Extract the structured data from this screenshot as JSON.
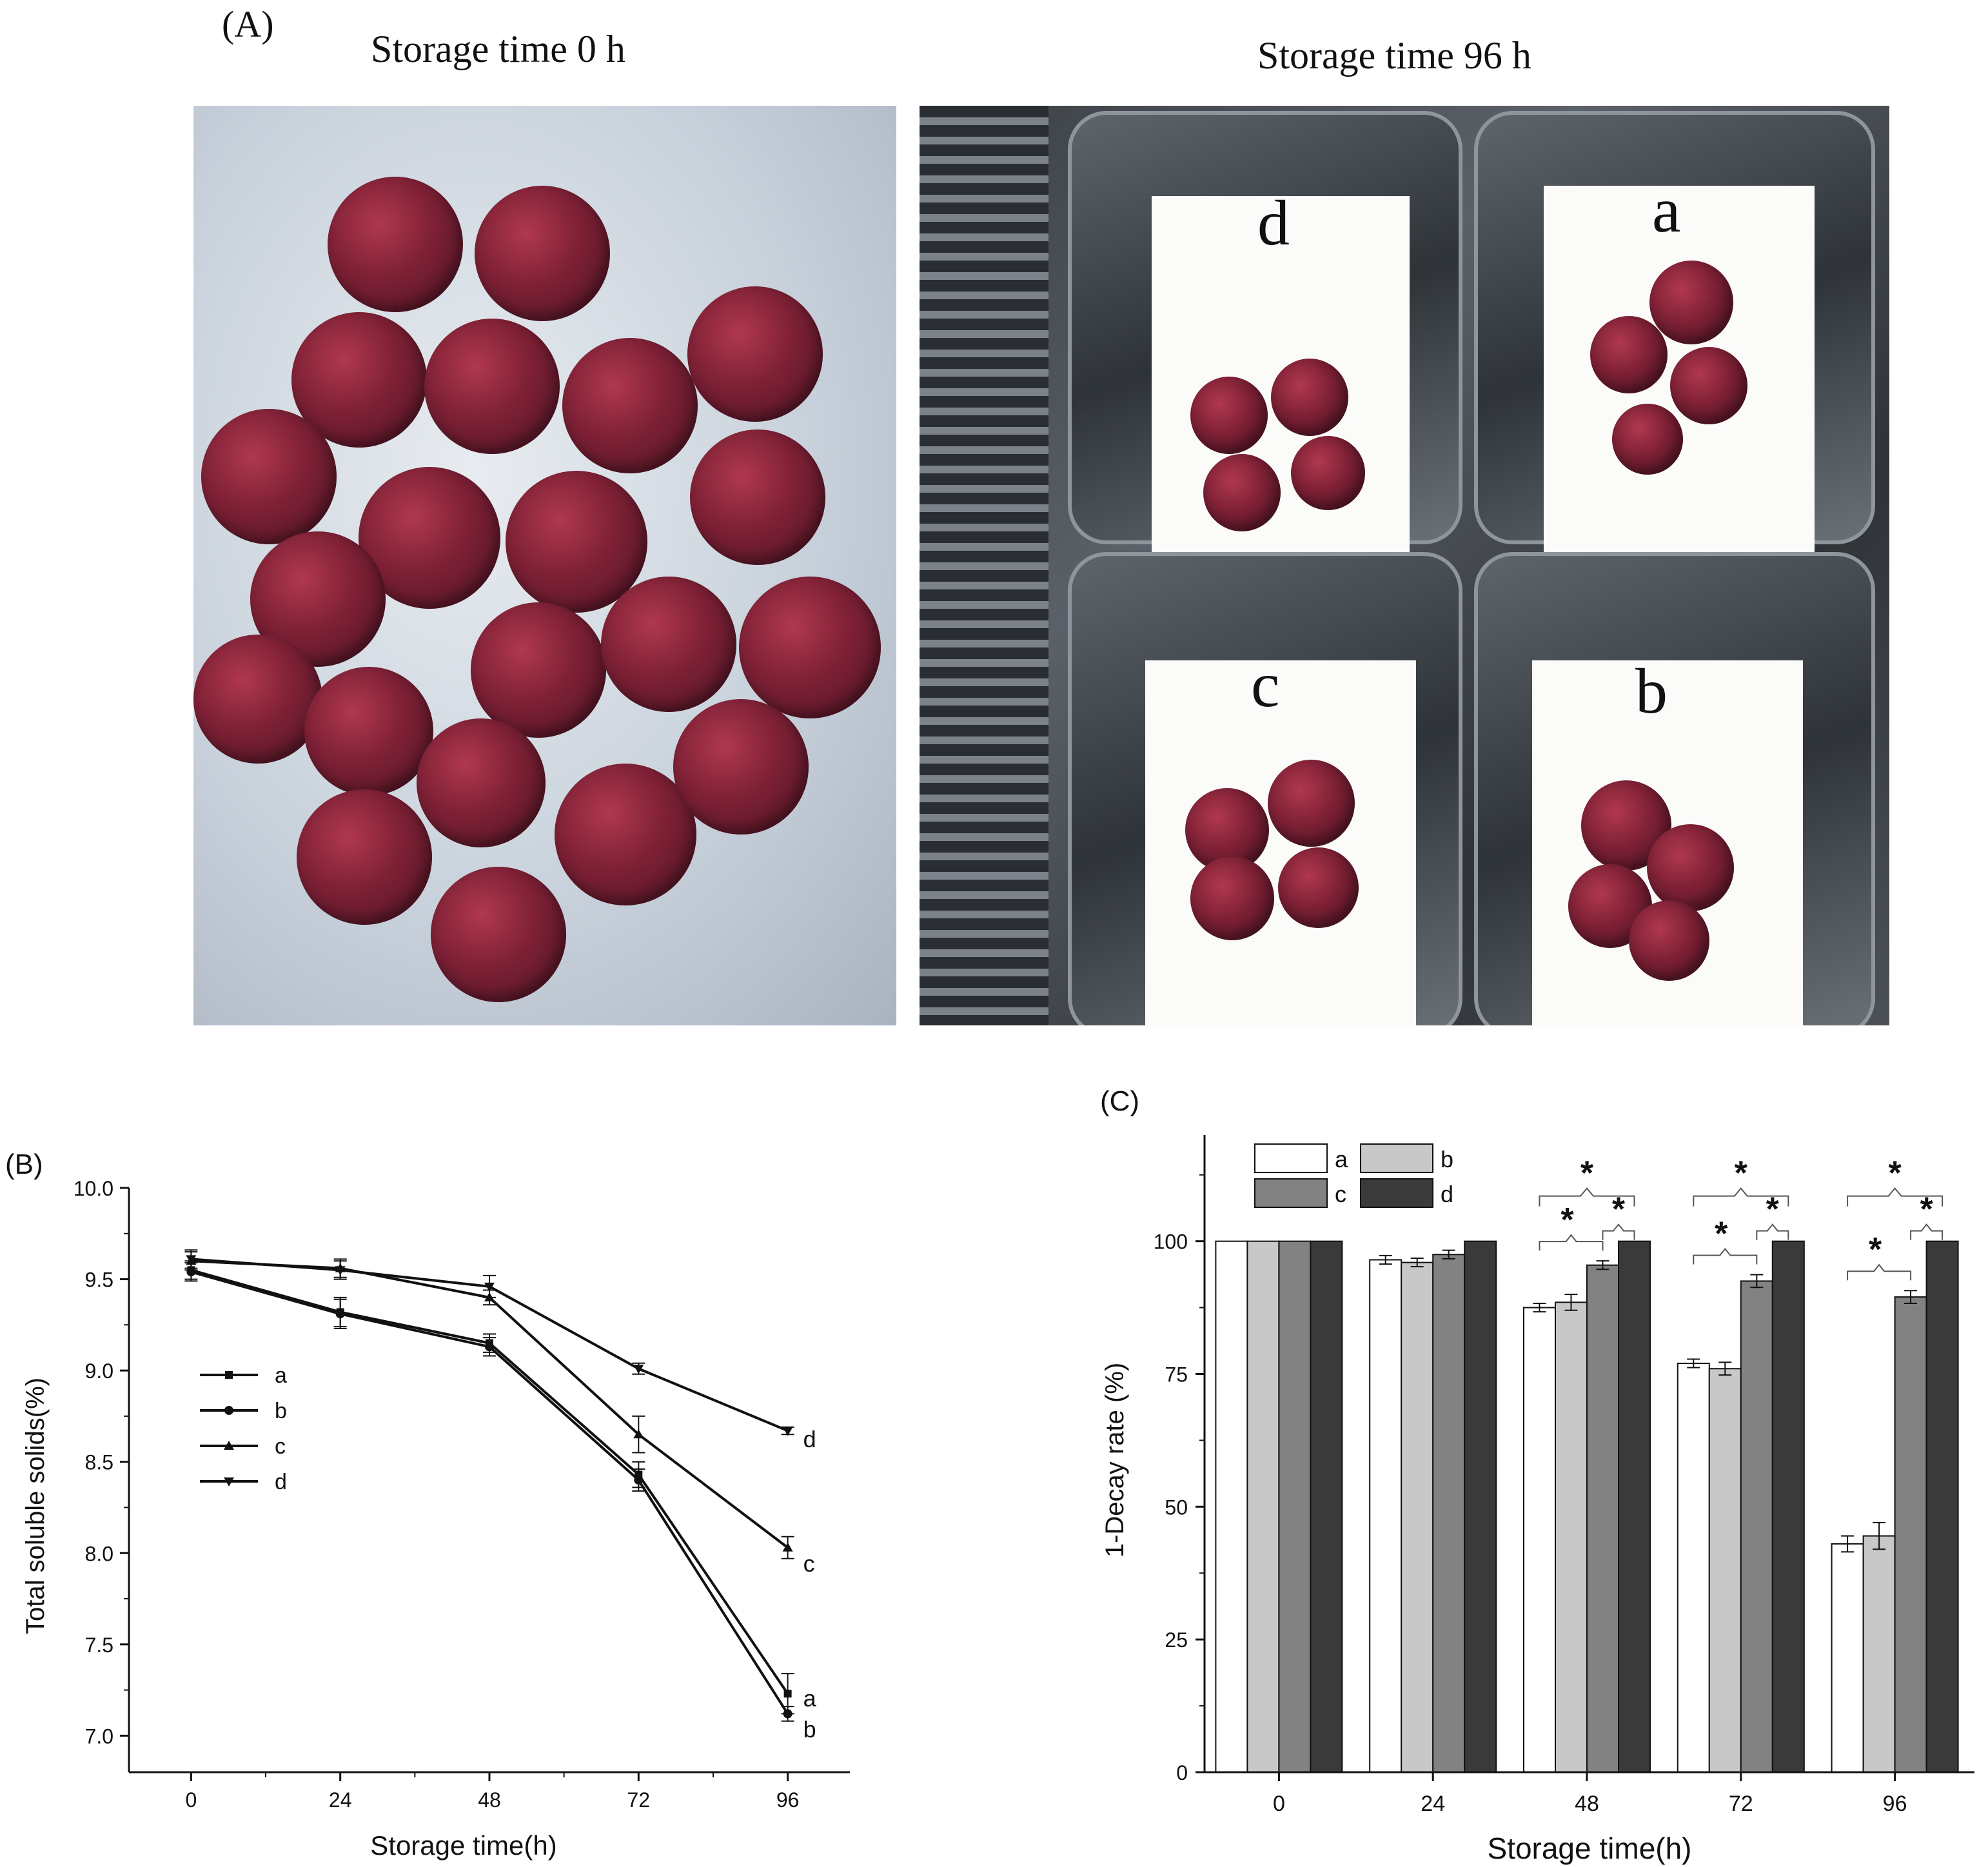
{
  "figure": {
    "panelA": {
      "letter": "(A)",
      "left_title": "Storage time 0 h",
      "right_title": "Storage time 96 h",
      "tray_labels": [
        "d",
        "a",
        "c",
        "b"
      ]
    },
    "panelB": {
      "letter": "(B)"
    },
    "panelC": {
      "letter": "(C)"
    }
  },
  "chart_data": [
    {
      "type": "line",
      "panel": "(B)",
      "xlabel": "Storage time(h)",
      "ylabel": "Total soluble solids(%)",
      "x": [
        0,
        24,
        48,
        72,
        96
      ],
      "x_ticks": [
        "0",
        "24",
        "48",
        "72",
        "96"
      ],
      "xlim": [
        -10,
        106
      ],
      "ylim": [
        6.8,
        10.0
      ],
      "y_ticks": [
        "7.0",
        "7.5",
        "8.0",
        "8.5",
        "9.0",
        "9.5",
        "10.0"
      ],
      "legend": "left-middle",
      "series": [
        {
          "name": "a",
          "marker": "square",
          "values": [
            9.55,
            9.32,
            9.15,
            8.43,
            7.23
          ],
          "errors": [
            0.05,
            0.08,
            0.05,
            0.07,
            0.11
          ],
          "end_label": "a"
        },
        {
          "name": "b",
          "marker": "circle",
          "values": [
            9.54,
            9.31,
            9.13,
            8.4,
            7.12
          ],
          "errors": [
            0.05,
            0.08,
            0.05,
            0.06,
            0.04
          ],
          "end_label": "b"
        },
        {
          "name": "c",
          "marker": "triangle-up",
          "values": [
            9.6,
            9.56,
            9.4,
            8.65,
            8.03
          ],
          "errors": [
            0.05,
            0.05,
            0.04,
            0.1,
            0.06
          ],
          "end_label": "c"
        },
        {
          "name": "d",
          "marker": "triangle-down",
          "values": [
            9.61,
            9.55,
            9.46,
            9.01,
            8.67
          ],
          "errors": [
            0.05,
            0.05,
            0.06,
            0.03,
            0.02
          ],
          "end_label": "d"
        }
      ]
    },
    {
      "type": "bar",
      "panel": "(C)",
      "xlabel": "Storage time(h)",
      "ylabel": "1-Decay rate (%)",
      "categories": [
        "0",
        "24",
        "48",
        "72",
        "96"
      ],
      "ylim": [
        0,
        120
      ],
      "y_ticks": [
        "0",
        "25",
        "50",
        "75",
        "100"
      ],
      "legend": "top-left",
      "series": [
        {
          "name": "a",
          "color": "#ffffff",
          "values": [
            100,
            96.5,
            87.5,
            77.0,
            43.0
          ],
          "errors": [
            0,
            0.8,
            0.8,
            0.8,
            1.5
          ]
        },
        {
          "name": "b",
          "color": "#c8c8c8",
          "values": [
            100,
            96.0,
            88.5,
            76.0,
            44.5
          ],
          "errors": [
            0,
            0.8,
            1.5,
            1.2,
            2.5
          ]
        },
        {
          "name": "c",
          "color": "#828282",
          "values": [
            100,
            97.5,
            95.5,
            92.5,
            89.5
          ],
          "errors": [
            0,
            0.8,
            0.8,
            1.2,
            1.2
          ]
        },
        {
          "name": "d",
          "color": "#3a3a3a",
          "values": [
            100,
            100,
            100,
            100,
            100
          ],
          "errors": [
            0,
            0,
            0,
            0,
            0
          ]
        }
      ],
      "significance_marker": "*",
      "significance_categories": [
        "48",
        "72",
        "96"
      ]
    }
  ]
}
